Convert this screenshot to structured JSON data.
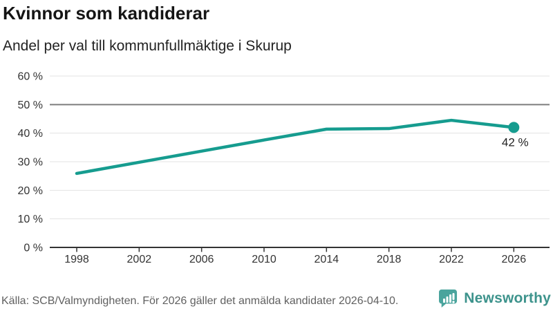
{
  "header": {
    "title": "Kvinnor som kandiderar",
    "subtitle": "Andel per val till kommunfullmäktige i Skurup"
  },
  "chart_data": {
    "type": "line",
    "title": "Kvinnor som kandiderar",
    "subtitle": "Andel per val till kommunfullmäktige i Skurup",
    "categories": [
      "1998",
      "2002",
      "2006",
      "2010",
      "2014",
      "2018",
      "2022",
      "2026"
    ],
    "values": [
      25.9,
      29.8,
      33.7,
      37.6,
      41.4,
      41.6,
      44.5,
      42
    ],
    "unit": "%",
    "xlabel": "",
    "ylabel": "",
    "ylim": [
      0,
      60
    ],
    "yticks": [
      0,
      10,
      20,
      30,
      40,
      50,
      60
    ],
    "ytick_suffix": " %",
    "grid": "horizontal",
    "reference_line_value": 50,
    "last_point_label": "42 %",
    "legend": "none",
    "line_color": "#169c8f",
    "gridline_color": "#e3e3e3",
    "reference_line_color": "#7d7d7d",
    "axis_color": "#333333",
    "tick_label_color": "#333333",
    "annotation_color": "#222222"
  },
  "footer": {
    "source": "Källa: SCB/Valmyndigheten. För 2026 gäller det anmälda kandidater 2026-04-10.",
    "brand": "Newsworthy",
    "brand_color": "#3d938c",
    "logo_color": "#4aa49d"
  }
}
